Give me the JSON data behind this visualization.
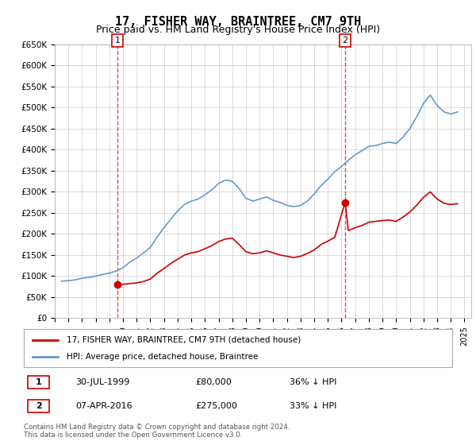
{
  "title": "17, FISHER WAY, BRAINTREE, CM7 9TH",
  "subtitle": "Price paid vs. HM Land Registry's House Price Index (HPI)",
  "ylabel_top": "£650K",
  "ylim": [
    0,
    650000
  ],
  "yticks": [
    0,
    50000,
    100000,
    150000,
    200000,
    250000,
    300000,
    350000,
    400000,
    450000,
    500000,
    550000,
    600000,
    650000
  ],
  "ytick_labels": [
    "£0",
    "£50K",
    "£100K",
    "£150K",
    "£200K",
    "£250K",
    "£300K",
    "£350K",
    "£400K",
    "£450K",
    "£500K",
    "£550K",
    "£600K",
    "£650K"
  ],
  "xlim_start": 1995.0,
  "xlim_end": 2025.5,
  "sale1_x": 1999.58,
  "sale1_y": 80000,
  "sale1_label": "1",
  "sale2_x": 2016.27,
  "sale2_y": 275000,
  "sale2_label": "2",
  "sale_color": "#cc0000",
  "hpi_color": "#6699cc",
  "legend_property": "17, FISHER WAY, BRAINTREE, CM7 9TH (detached house)",
  "legend_hpi": "HPI: Average price, detached house, Braintree",
  "table_row1": [
    "1",
    "30-JUL-1999",
    "£80,000",
    "36% ↓ HPI"
  ],
  "table_row2": [
    "2",
    "07-APR-2016",
    "£275,000",
    "33% ↓ HPI"
  ],
  "footnote1": "Contains HM Land Registry data © Crown copyright and database right 2024.",
  "footnote2": "This data is licensed under the Open Government Licence v3.0.",
  "background_color": "#ffffff",
  "grid_color": "#cccccc",
  "title_fontsize": 11,
  "subtitle_fontsize": 9,
  "hpi_data_x": [
    1995.5,
    1996.0,
    1996.5,
    1997.0,
    1997.5,
    1998.0,
    1998.5,
    1999.0,
    1999.5,
    2000.0,
    2000.5,
    2001.0,
    2001.5,
    2002.0,
    2002.5,
    2003.0,
    2003.5,
    2004.0,
    2004.5,
    2005.0,
    2005.5,
    2006.0,
    2006.5,
    2007.0,
    2007.5,
    2008.0,
    2008.5,
    2009.0,
    2009.5,
    2010.0,
    2010.5,
    2011.0,
    2011.5,
    2012.0,
    2012.5,
    2013.0,
    2013.5,
    2014.0,
    2014.5,
    2015.0,
    2015.5,
    2016.0,
    2016.5,
    2017.0,
    2017.5,
    2018.0,
    2018.5,
    2019.0,
    2019.5,
    2020.0,
    2020.5,
    2021.0,
    2021.5,
    2022.0,
    2022.5,
    2023.0,
    2023.5,
    2024.0,
    2024.5
  ],
  "hpi_data_y": [
    88000,
    89000,
    91000,
    95000,
    97000,
    100000,
    104000,
    107000,
    112000,
    120000,
    133000,
    143000,
    155000,
    168000,
    193000,
    215000,
    235000,
    255000,
    270000,
    278000,
    283000,
    293000,
    305000,
    320000,
    328000,
    325000,
    308000,
    285000,
    278000,
    283000,
    288000,
    280000,
    275000,
    268000,
    265000,
    268000,
    278000,
    295000,
    315000,
    330000,
    348000,
    360000,
    375000,
    388000,
    398000,
    408000,
    410000,
    415000,
    418000,
    415000,
    430000,
    450000,
    478000,
    510000,
    530000,
    505000,
    490000,
    485000,
    490000
  ],
  "prop_data_x": [
    1999.58,
    2000.0,
    2000.5,
    2001.0,
    2001.5,
    2002.0,
    2002.5,
    2003.0,
    2003.5,
    2004.0,
    2004.5,
    2005.0,
    2005.5,
    2006.0,
    2006.5,
    2007.0,
    2007.5,
    2008.0,
    2008.5,
    2009.0,
    2009.5,
    2010.0,
    2010.5,
    2011.0,
    2011.5,
    2012.0,
    2012.5,
    2013.0,
    2013.5,
    2014.0,
    2014.5,
    2015.0,
    2015.5,
    2016.27,
    2016.5,
    2017.0,
    2017.5,
    2018.0,
    2018.5,
    2019.0,
    2019.5,
    2020.0,
    2020.5,
    2021.0,
    2021.5,
    2022.0,
    2022.5,
    2023.0,
    2023.5,
    2024.0,
    2024.5
  ],
  "prop_data_y": [
    80000,
    80500,
    82000,
    84000,
    87000,
    93000,
    107000,
    118000,
    130000,
    140000,
    150000,
    155000,
    158000,
    165000,
    172000,
    182000,
    188000,
    190000,
    175000,
    158000,
    153000,
    155000,
    160000,
    155000,
    150000,
    147000,
    144000,
    147000,
    154000,
    162000,
    175000,
    183000,
    192000,
    275000,
    208000,
    215000,
    220000,
    228000,
    230000,
    232000,
    233000,
    230000,
    240000,
    252000,
    268000,
    287000,
    300000,
    283000,
    273000,
    270000,
    272000
  ]
}
